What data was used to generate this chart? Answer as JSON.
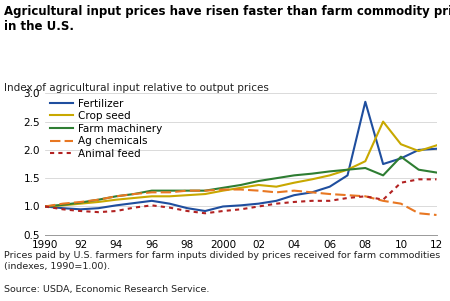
{
  "title": "Agricultural input prices have risen faster than farm commodity prices\nin the U.S.",
  "subtitle": "Index of agricultural input relative to output prices",
  "footnote": "Prices paid by U.S. farmers for farm inputs divided by prices received for farm commodities\n(indexes, 1990=1.00).",
  "source": "Source: USDA, Economic Research Service.",
  "years": [
    1990,
    1991,
    1992,
    1993,
    1994,
    1995,
    1996,
    1997,
    1998,
    1999,
    2000,
    2001,
    2002,
    2003,
    2004,
    2005,
    2006,
    2007,
    2008,
    2009,
    2010,
    2011,
    2012
  ],
  "fertilizer": [
    1.0,
    0.97,
    0.95,
    0.97,
    1.02,
    1.06,
    1.1,
    1.05,
    0.97,
    0.92,
    1.0,
    1.02,
    1.05,
    1.1,
    1.2,
    1.25,
    1.35,
    1.55,
    2.85,
    1.75,
    1.85,
    2.0,
    2.02
  ],
  "crop_seed": [
    1.0,
    1.02,
    1.05,
    1.08,
    1.12,
    1.15,
    1.18,
    1.18,
    1.2,
    1.22,
    1.28,
    1.33,
    1.38,
    1.35,
    1.42,
    1.48,
    1.55,
    1.65,
    1.8,
    2.5,
    2.1,
    1.98,
    2.08
  ],
  "farm_machinery": [
    1.0,
    1.03,
    1.07,
    1.12,
    1.18,
    1.22,
    1.28,
    1.28,
    1.28,
    1.28,
    1.33,
    1.38,
    1.45,
    1.5,
    1.55,
    1.58,
    1.62,
    1.65,
    1.68,
    1.55,
    1.88,
    1.65,
    1.6
  ],
  "ag_chemicals": [
    1.0,
    1.05,
    1.08,
    1.12,
    1.18,
    1.22,
    1.25,
    1.25,
    1.28,
    1.28,
    1.3,
    1.3,
    1.28,
    1.25,
    1.28,
    1.25,
    1.22,
    1.2,
    1.18,
    1.1,
    1.05,
    0.88,
    0.85
  ],
  "animal_feed": [
    1.0,
    0.95,
    0.92,
    0.9,
    0.92,
    0.98,
    1.02,
    0.98,
    0.92,
    0.88,
    0.92,
    0.95,
    1.0,
    1.05,
    1.08,
    1.1,
    1.1,
    1.15,
    1.18,
    1.12,
    1.42,
    1.48,
    1.48
  ],
  "colors": {
    "fertilizer": "#1f4e9e",
    "crop_seed": "#c8a800",
    "farm_machinery": "#2e7d32",
    "ag_chemicals": "#e87722",
    "animal_feed": "#b22222"
  },
  "ylim": [
    0.5,
    3.0
  ],
  "yticks": [
    0.5,
    1.0,
    1.5,
    2.0,
    2.5,
    3.0
  ],
  "xticks": [
    1990,
    1992,
    1994,
    1996,
    1998,
    2000,
    2002,
    2004,
    2006,
    2008,
    2010,
    2012
  ],
  "xticklabels": [
    "1990",
    "92",
    "94",
    "96",
    "98",
    "2000",
    "02",
    "04",
    "06",
    "08",
    "10",
    "12"
  ],
  "bg_color": "#ffffff"
}
